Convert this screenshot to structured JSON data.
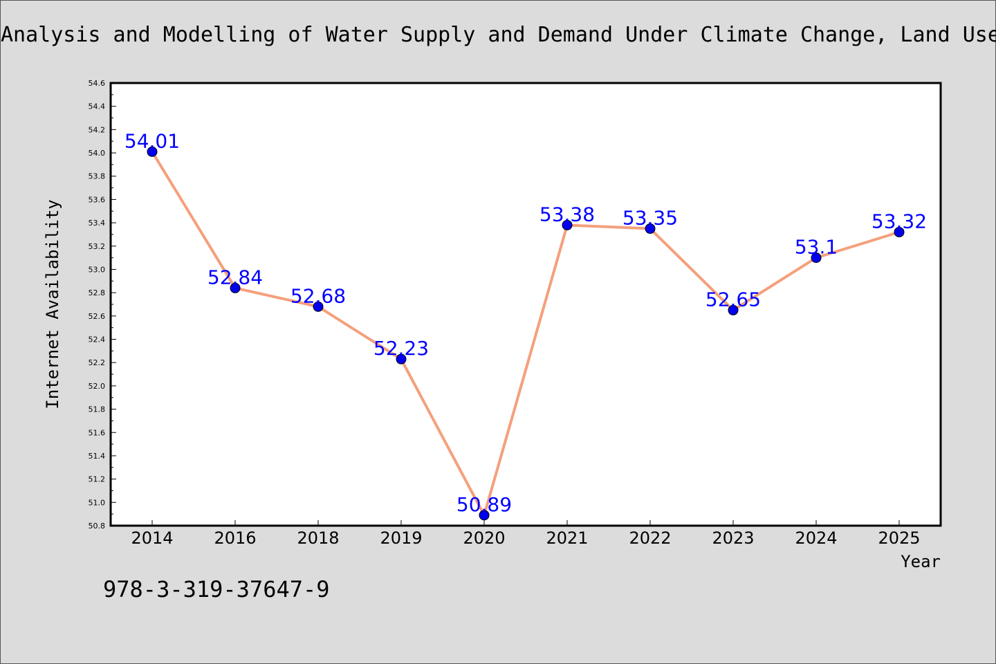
{
  "chart_data": {
    "type": "line",
    "title": "Analysis and Modelling of Water Supply and Demand Under Climate Change, Land Use",
    "xlabel": "Year",
    "ylabel": "Internet Availability",
    "categories": [
      "2014",
      "2016",
      "2018",
      "2019",
      "2020",
      "2021",
      "2022",
      "2023",
      "2024",
      "2025"
    ],
    "series": [
      {
        "values": [
          54.01,
          52.84,
          52.68,
          52.23,
          50.89,
          53.38,
          53.35,
          52.65,
          53.1,
          53.32
        ],
        "labels": [
          "54.01",
          "52.84",
          "52.68",
          "52.23",
          "50.89",
          "53.38",
          "53.35",
          "52.65",
          "53.1",
          "53.32"
        ]
      }
    ],
    "ylim": [
      50.8,
      54.6
    ],
    "yticks": [
      "50.8",
      "51.0",
      "51.2",
      "51.4",
      "51.6",
      "51.8",
      "52.0",
      "52.2",
      "52.4",
      "52.6",
      "52.8",
      "53.0",
      "53.2",
      "53.4",
      "53.6",
      "53.8",
      "54.0",
      "54.2",
      "54.4",
      "54.6"
    ],
    "grid": false,
    "colors": {
      "line": "#f4a07c",
      "marker": "#0000ee",
      "label": "#0000ff",
      "plot_background": "#ffffff",
      "figure_background": "#dcdcdc"
    }
  },
  "footer_text": "978-3-319-37647-9"
}
